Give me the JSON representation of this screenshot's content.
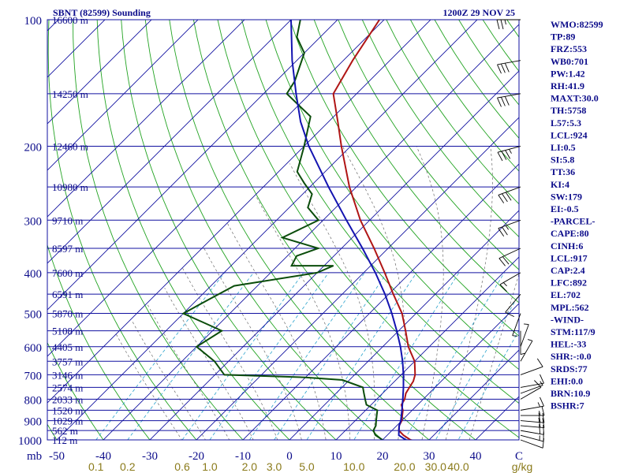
{
  "chart_data": {
    "type": "line",
    "title": "SBNT (82599) Sounding",
    "time_label": "1200Z 29 NOV 25",
    "y_scale": "log-pressure",
    "ylim": [
      1000,
      100
    ],
    "y_ticks": [
      "100",
      "200",
      "300",
      "400",
      "500",
      "600",
      "700",
      "800",
      "900",
      "1000"
    ],
    "y_unit_label": "mb",
    "x_temp_ticks": [
      "-50",
      "-40",
      "-30",
      "-20",
      "-10",
      "0",
      "10",
      "20",
      "30",
      "40",
      "C"
    ],
    "x_temp_values": [
      -50,
      -40,
      -30,
      -20,
      -10,
      0,
      10,
      20,
      30,
      40
    ],
    "mixing_ratio_ticks": [
      "0.1",
      "0.2",
      "0.6",
      "1.0",
      "2.0",
      "3.0",
      "5.0",
      "10.0",
      "20.0",
      "30.0",
      "40.0",
      "g/kg"
    ],
    "height_labels": [
      {
        "p": 100,
        "text": "16600 m"
      },
      {
        "p": 150,
        "text": "14250 m"
      },
      {
        "p": 200,
        "text": "12460 m"
      },
      {
        "p": 250,
        "text": "10980 m"
      },
      {
        "p": 300,
        "text": "9710 m"
      },
      {
        "p": 350,
        "text": "8597 m"
      },
      {
        "p": 400,
        "text": "7600 m"
      },
      {
        "p": 450,
        "text": "6591 m"
      },
      {
        "p": 500,
        "text": "5870 m"
      },
      {
        "p": 550,
        "text": "5108 m"
      },
      {
        "p": 600,
        "text": "4405 m"
      },
      {
        "p": 650,
        "text": "3757 m"
      },
      {
        "p": 700,
        "text": "3146 m"
      },
      {
        "p": 750,
        "text": "2574 m"
      },
      {
        "p": 800,
        "text": "2033 m"
      },
      {
        "p": 850,
        "text": "1520 m"
      },
      {
        "p": 900,
        "text": "1029 m"
      },
      {
        "p": 950,
        "text": "562 m"
      },
      {
        "p": 1000,
        "text": "112 m"
      }
    ],
    "series": [
      {
        "kind": "temperature",
        "color": "#b01515",
        "points": [
          [
            1012,
            28.5
          ],
          [
            1000,
            26.0
          ],
          [
            975,
            23.5
          ],
          [
            950,
            21.5
          ],
          [
            925,
            20.5
          ],
          [
            900,
            20.0
          ],
          [
            875,
            19.0
          ],
          [
            850,
            18.0
          ],
          [
            825,
            16.5
          ],
          [
            800,
            16.0
          ],
          [
            775,
            15.0
          ],
          [
            750,
            14.5
          ],
          [
            725,
            14.0
          ],
          [
            700,
            13.0
          ],
          [
            650,
            10.0
          ],
          [
            600,
            5.5
          ],
          [
            550,
            1.5
          ],
          [
            500,
            -3.0
          ],
          [
            450,
            -9.0
          ],
          [
            400,
            -15.5
          ],
          [
            350,
            -23.0
          ],
          [
            300,
            -32.0
          ],
          [
            250,
            -41.5
          ],
          [
            200,
            -52.0
          ],
          [
            175,
            -58.0
          ],
          [
            150,
            -65.0
          ],
          [
            125,
            -68.0
          ],
          [
            100,
            -71.0
          ]
        ]
      },
      {
        "kind": "dewpoint",
        "color": "#0b4d0b",
        "points": [
          [
            1012,
            22.0
          ],
          [
            1000,
            20.0
          ],
          [
            975,
            17.5
          ],
          [
            950,
            16.0
          ],
          [
            925,
            15.5
          ],
          [
            900,
            14.5
          ],
          [
            875,
            13.5
          ],
          [
            850,
            12.5
          ],
          [
            825,
            9.0
          ],
          [
            800,
            7.5
          ],
          [
            775,
            6.0
          ],
          [
            750,
            4.5
          ],
          [
            720,
            -1.5
          ],
          [
            710,
            -10.0
          ],
          [
            700,
            -28.0
          ],
          [
            650,
            -33.0
          ],
          [
            600,
            -40.0
          ],
          [
            550,
            -38.0
          ],
          [
            500,
            -50.0
          ],
          [
            470,
            -48.0
          ],
          [
            430,
            -45.0
          ],
          [
            400,
            -30.0
          ],
          [
            385,
            -28.0
          ],
          [
            385,
            -37.0
          ],
          [
            365,
            -38.0
          ],
          [
            350,
            -35.0
          ],
          [
            330,
            -45.0
          ],
          [
            300,
            -41.0
          ],
          [
            280,
            -46.0
          ],
          [
            260,
            -48.0
          ],
          [
            245,
            -52.0
          ],
          [
            230,
            -56.0
          ],
          [
            200,
            -60.0
          ],
          [
            170,
            -65.0
          ],
          [
            150,
            -75.0
          ],
          [
            140,
            -76.0
          ],
          [
            120,
            -80.0
          ],
          [
            110,
            -85.0
          ],
          [
            100,
            -88.0
          ]
        ]
      },
      {
        "kind": "parcel",
        "color": "#1313b0",
        "points": [
          [
            1012,
            28.5
          ],
          [
            1000,
            25.0
          ],
          [
            975,
            22.5
          ],
          [
            950,
            21.5
          ],
          [
            924,
            20.5
          ],
          [
            900,
            19.8
          ],
          [
            850,
            17.8
          ],
          [
            800,
            15.6
          ],
          [
            750,
            13.2
          ],
          [
            700,
            10.5
          ],
          [
            650,
            7.4
          ],
          [
            600,
            3.8
          ],
          [
            550,
            -0.4
          ],
          [
            500,
            -5.2
          ],
          [
            450,
            -10.8
          ],
          [
            400,
            -17.5
          ],
          [
            350,
            -25.5
          ],
          [
            300,
            -35.0
          ],
          [
            250,
            -46.0
          ],
          [
            200,
            -59.0
          ],
          [
            175,
            -66.0
          ],
          [
            150,
            -73.0
          ],
          [
            125,
            -81.0
          ],
          [
            100,
            -90.0
          ]
        ]
      }
    ],
    "wind_barbs": [
      {
        "p": 1000,
        "dir": 110,
        "spd": 10
      },
      {
        "p": 975,
        "dir": 105,
        "spd": 15
      },
      {
        "p": 950,
        "dir": 100,
        "spd": 20
      },
      {
        "p": 925,
        "dir": 95,
        "spd": 20
      },
      {
        "p": 900,
        "dir": 95,
        "spd": 20
      },
      {
        "p": 875,
        "dir": 90,
        "spd": 15
      },
      {
        "p": 850,
        "dir": 80,
        "spd": 15
      },
      {
        "p": 800,
        "dir": 60,
        "spd": 10
      },
      {
        "p": 775,
        "dir": 70,
        "spd": 5
      },
      {
        "p": 750,
        "dir": 80,
        "spd": 10
      },
      {
        "p": 700,
        "dir": 70,
        "spd": 10
      },
      {
        "p": 650,
        "dir": 30,
        "spd": 5
      },
      {
        "p": 600,
        "dir": 20,
        "spd": 5
      },
      {
        "p": 550,
        "dir": 180,
        "spd": 5
      },
      {
        "p": 500,
        "dir": 200,
        "spd": 5
      },
      {
        "p": 450,
        "dir": 220,
        "spd": 10
      },
      {
        "p": 400,
        "dir": 240,
        "spd": 15
      },
      {
        "p": 350,
        "dir": 245,
        "spd": 20
      },
      {
        "p": 300,
        "dir": 250,
        "spd": 25
      },
      {
        "p": 250,
        "dir": 250,
        "spd": 30
      },
      {
        "p": 200,
        "dir": 255,
        "spd": 35
      },
      {
        "p": 150,
        "dir": 260,
        "spd": 30
      },
      {
        "p": 125,
        "dir": 260,
        "spd": 30
      },
      {
        "p": 100,
        "dir": 270,
        "spd": 25
      }
    ],
    "grid": true
  },
  "indices": [
    "WMO:82599",
    "TP:89",
    "FRZ:553",
    "WB0:701",
    "PW:1.42",
    "RH:41.9",
    "MAXT:30.0",
    "TH:5758",
    "L57:5.3",
    "LCL:924",
    "LI:0.5",
    "SI:5.8",
    "TT:36",
    "KI:4",
    "SW:179",
    "EI:-0.5",
    "-PARCEL-",
    "CAPE:80",
    "CINH:6",
    "LCL:917",
    "CAP:2.4",
    "LFC:892",
    "EL:702",
    "MPL:562",
    "-WIND-",
    "STM:117/9",
    "HEL:-33",
    "SHR:-:0.0",
    "SRDS:77",
    "EHI:0.0",
    "BRN:10.9",
    "BSHR:7"
  ],
  "colors": {
    "isobar": "#1010a0",
    "isotherm": "#1010a0",
    "dry_adiabat": "#22a322",
    "moist_adiabat": "#6b6b6b",
    "mixing_ratio": "#2aa3cc",
    "temperature": "#b01515",
    "dewpoint": "#0b4d0b",
    "parcel": "#1313b0",
    "text": "#0b0b8a",
    "mixing_text": "#8a7a1a"
  }
}
